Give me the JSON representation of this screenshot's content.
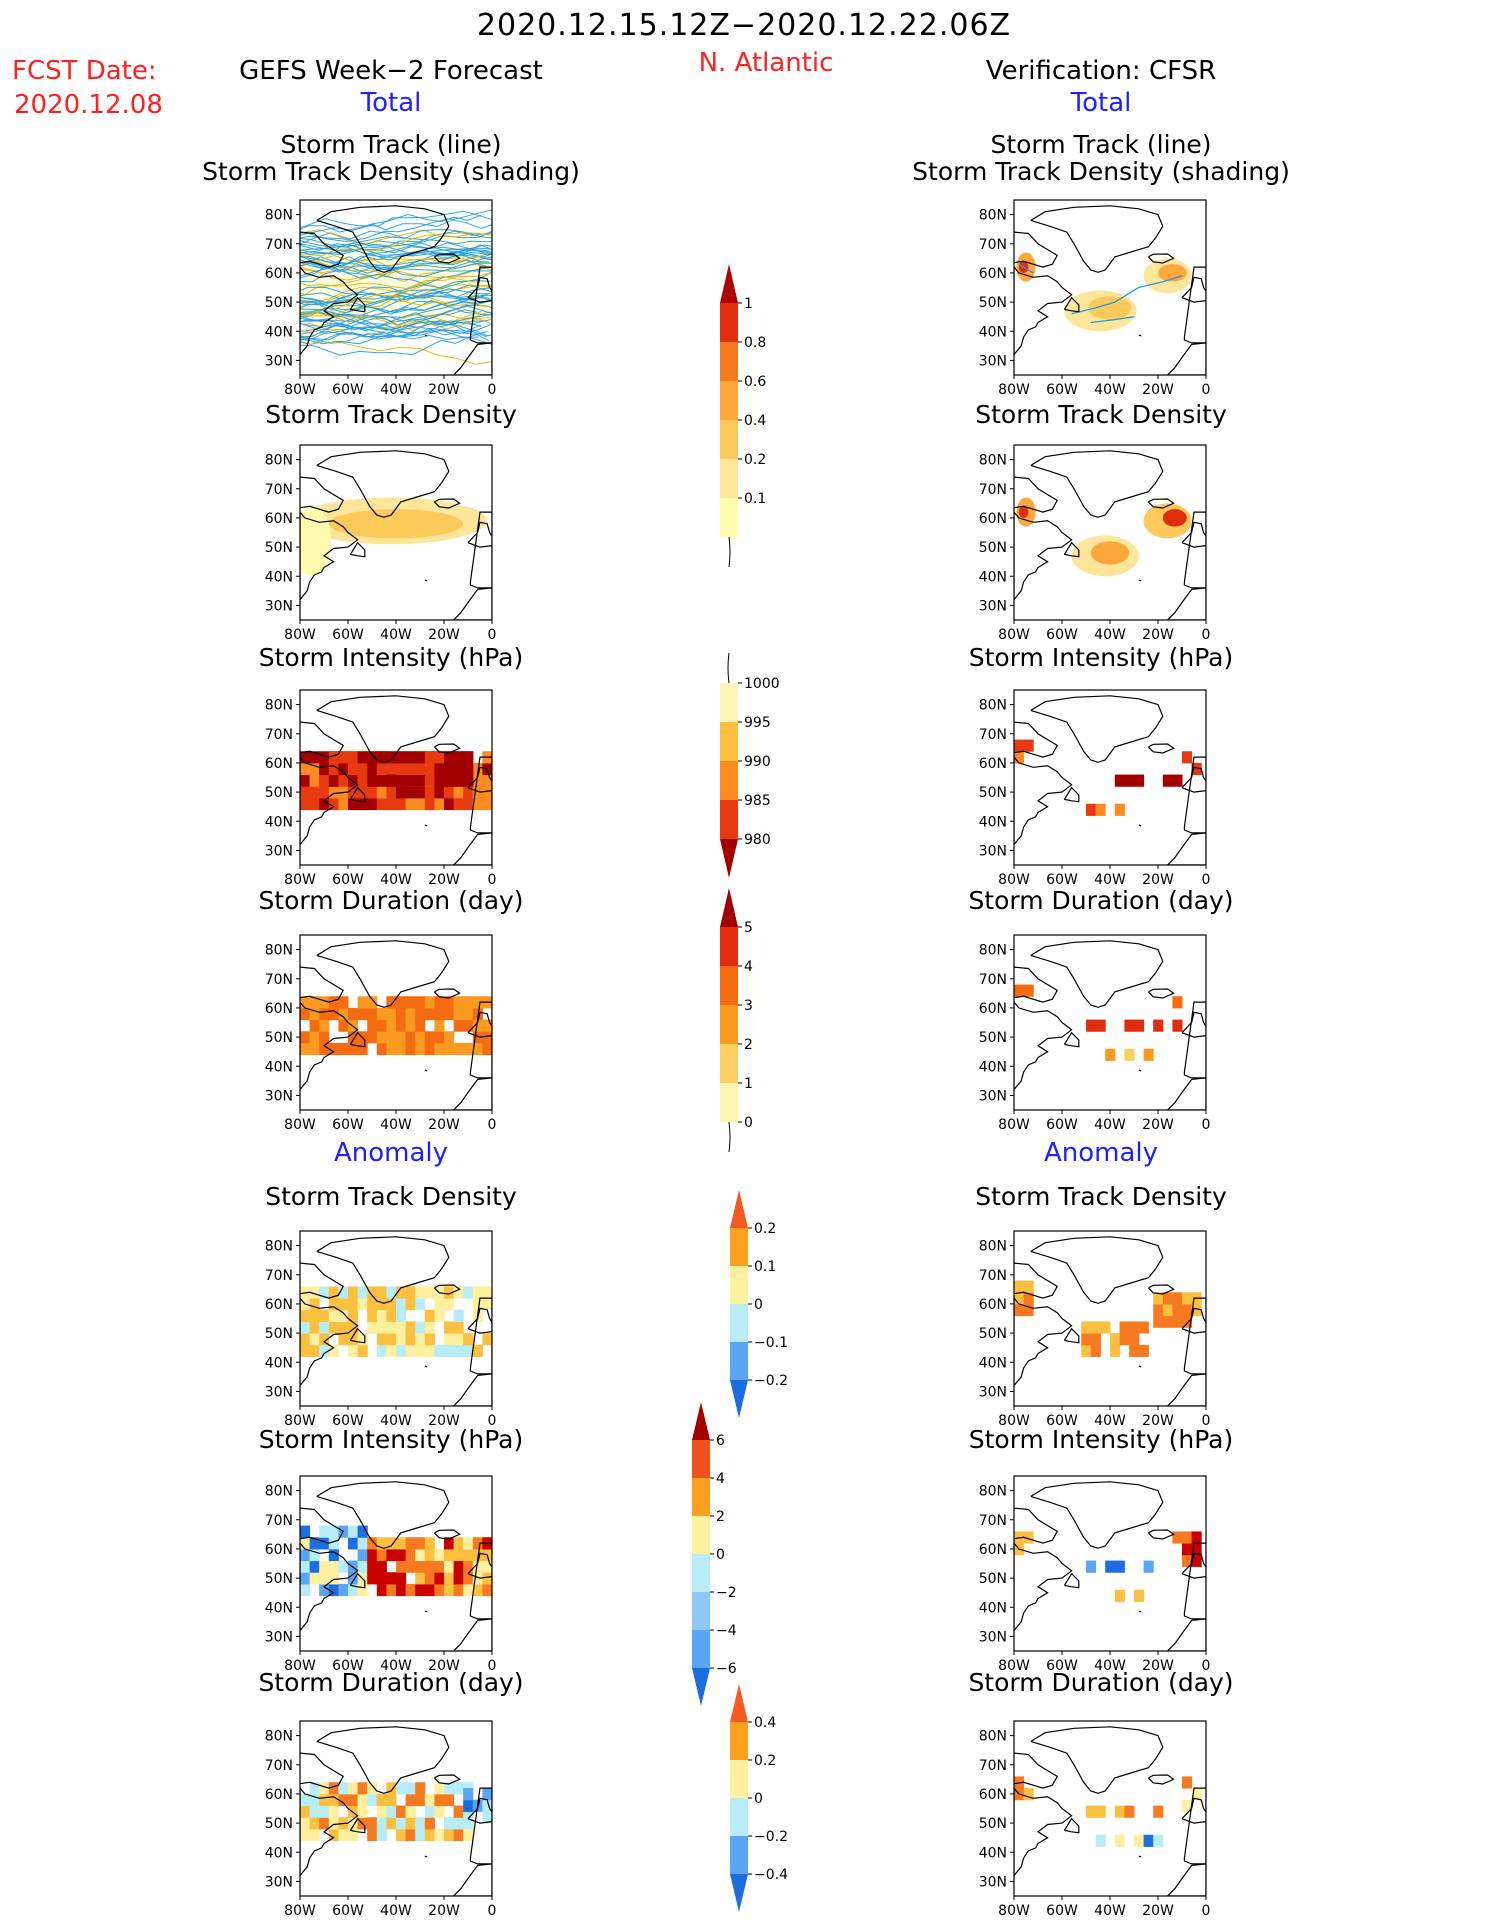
{
  "header": {
    "date_range": "2020.12.15.12Z−2020.12.22.06Z",
    "fcst_label": "FCST Date:",
    "fcst_date": "2020.12.08",
    "region": "N. Atlantic",
    "left_title": "GEFS Week−2 Forecast",
    "right_title": "Verification: CFSR",
    "total_label": "Total",
    "anomaly_label": "Anomaly"
  },
  "map_axes": {
    "lat_ticks": [
      "80N",
      "70N",
      "60N",
      "50N",
      "40N",
      "30N"
    ],
    "lon_ticks": [
      "80W",
      "60W",
      "40W",
      "20W",
      "0"
    ]
  },
  "panels": {
    "track_line_title_1": "Storm Track (line)",
    "track_line_title_2": "Storm Track Density (shading)",
    "density_title": "Storm Track Density",
    "intensity_title": "Storm Intensity (hPa)",
    "duration_title": "Storm Duration (day)"
  },
  "colorbars": {
    "density_total": [
      "1",
      "0.8",
      "0.6",
      "0.4",
      "0.2",
      "0.1"
    ],
    "intensity_total": [
      "1000",
      "995",
      "990",
      "985",
      "980"
    ],
    "duration_total": [
      "5",
      "4",
      "3",
      "2",
      "1",
      "0"
    ],
    "density_anom": [
      "0.2",
      "0.1",
      "0",
      "−0.1",
      "−0.2"
    ],
    "intensity_anom": [
      "6",
      "4",
      "2",
      "0",
      "−2",
      "−4",
      "−6"
    ],
    "duration_anom": [
      "0.4",
      "0.2",
      "0",
      "−0.2",
      "−0.4"
    ]
  },
  "colors": {
    "text_red": "#ff2020",
    "text_blue": "#2020ff",
    "track_line": "#1e9be6",
    "track_line_secondary": "#e6b400"
  }
}
